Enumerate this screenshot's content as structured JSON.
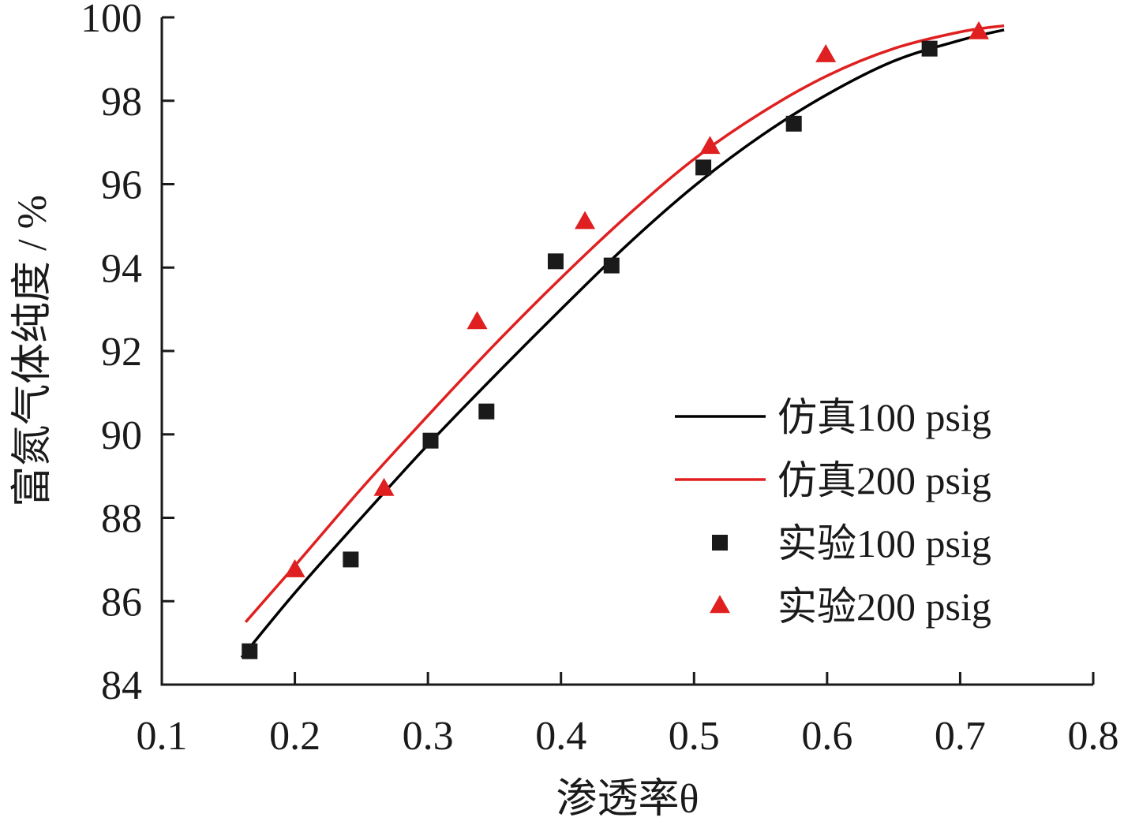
{
  "chart_data": {
    "type": "scatter",
    "xlabel": "渗透率θ",
    "ylabel": "富氮气体纯度 / %",
    "xlim": [
      0.1,
      0.8
    ],
    "ylim": [
      84,
      100
    ],
    "xticks": [
      "0.1",
      "0.2",
      "0.3",
      "0.4",
      "0.5",
      "0.6",
      "0.7",
      "0.8"
    ],
    "yticks": [
      "84",
      "86",
      "88",
      "90",
      "92",
      "94",
      "96",
      "98",
      "100"
    ],
    "grid": false,
    "legend_position": "bottom-right",
    "series": [
      {
        "name": "仿真100 psig",
        "kind": "line",
        "color": "#000000",
        "x": [
          0.16,
          0.2,
          0.25,
          0.3,
          0.35,
          0.4,
          0.45,
          0.5,
          0.55,
          0.6,
          0.65,
          0.7,
          0.733
        ],
        "y": [
          84.65,
          86.2,
          88.0,
          89.75,
          91.4,
          93.0,
          94.55,
          95.95,
          97.15,
          98.15,
          98.95,
          99.45,
          99.7
        ]
      },
      {
        "name": "仿真200 psig",
        "kind": "line",
        "color": "#e02020",
        "x": [
          0.163,
          0.2,
          0.25,
          0.3,
          0.35,
          0.4,
          0.45,
          0.5,
          0.55,
          0.6,
          0.65,
          0.7,
          0.733
        ],
        "y": [
          85.5,
          86.85,
          88.7,
          90.45,
          92.15,
          93.75,
          95.25,
          96.6,
          97.7,
          98.6,
          99.25,
          99.65,
          99.8
        ]
      },
      {
        "name": "实验100 psig",
        "kind": "scatter",
        "marker": "square",
        "color": "#1a1a1a",
        "x": [
          0.166,
          0.242,
          0.302,
          0.344,
          0.396,
          0.438,
          0.507,
          0.575,
          0.677
        ],
        "y": [
          84.8,
          87.0,
          89.85,
          90.55,
          94.15,
          94.05,
          96.4,
          97.45,
          99.25
        ]
      },
      {
        "name": "实验200 psig",
        "kind": "scatter",
        "marker": "triangle",
        "color": "#e02020",
        "x": [
          0.2,
          0.267,
          0.337,
          0.418,
          0.512,
          0.599,
          0.714
        ],
        "y": [
          86.75,
          88.7,
          92.7,
          95.1,
          96.9,
          99.1,
          99.65
        ]
      }
    ]
  }
}
